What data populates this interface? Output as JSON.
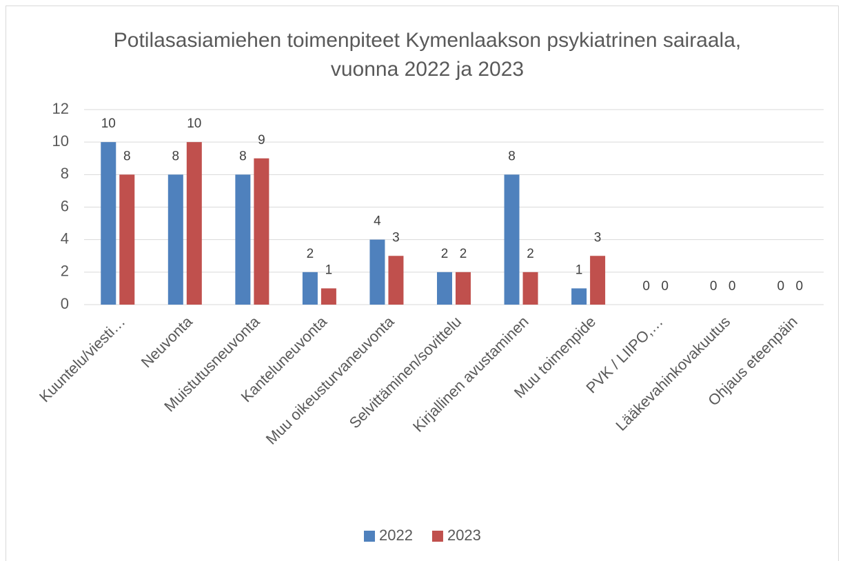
{
  "chart_data": {
    "type": "bar",
    "title": "Potilasasiamiehen toimenpiteet Kymenlaakson psykiatrinen sairaala, vuonna 2022 ja 2023",
    "categories": [
      "Kuuntelu/viesti…",
      "Neuvonta",
      "Muistutusneuvonta",
      "Kanteluneuvonta",
      "Muu oikeusturvaneuvonta",
      "Selvittäminen/sovittelu",
      "Kirjallinen avustaminen",
      "Muu toimenpide",
      "PVK / LIIPO,…",
      "Lääkevahinkovakuutus",
      "Ohjaus eteenpäin"
    ],
    "series": [
      {
        "name": "2022",
        "color": "#4f81bd",
        "values": [
          10,
          8,
          8,
          2,
          4,
          2,
          8,
          1,
          0,
          0,
          0
        ]
      },
      {
        "name": "2023",
        "color": "#c0504d",
        "values": [
          8,
          10,
          9,
          1,
          3,
          2,
          2,
          3,
          0,
          0,
          0
        ]
      }
    ],
    "ylim": [
      0,
      12
    ],
    "yticks": [
      0,
      2,
      4,
      6,
      8,
      10,
      12
    ],
    "grid": true,
    "legend": "bottom"
  }
}
